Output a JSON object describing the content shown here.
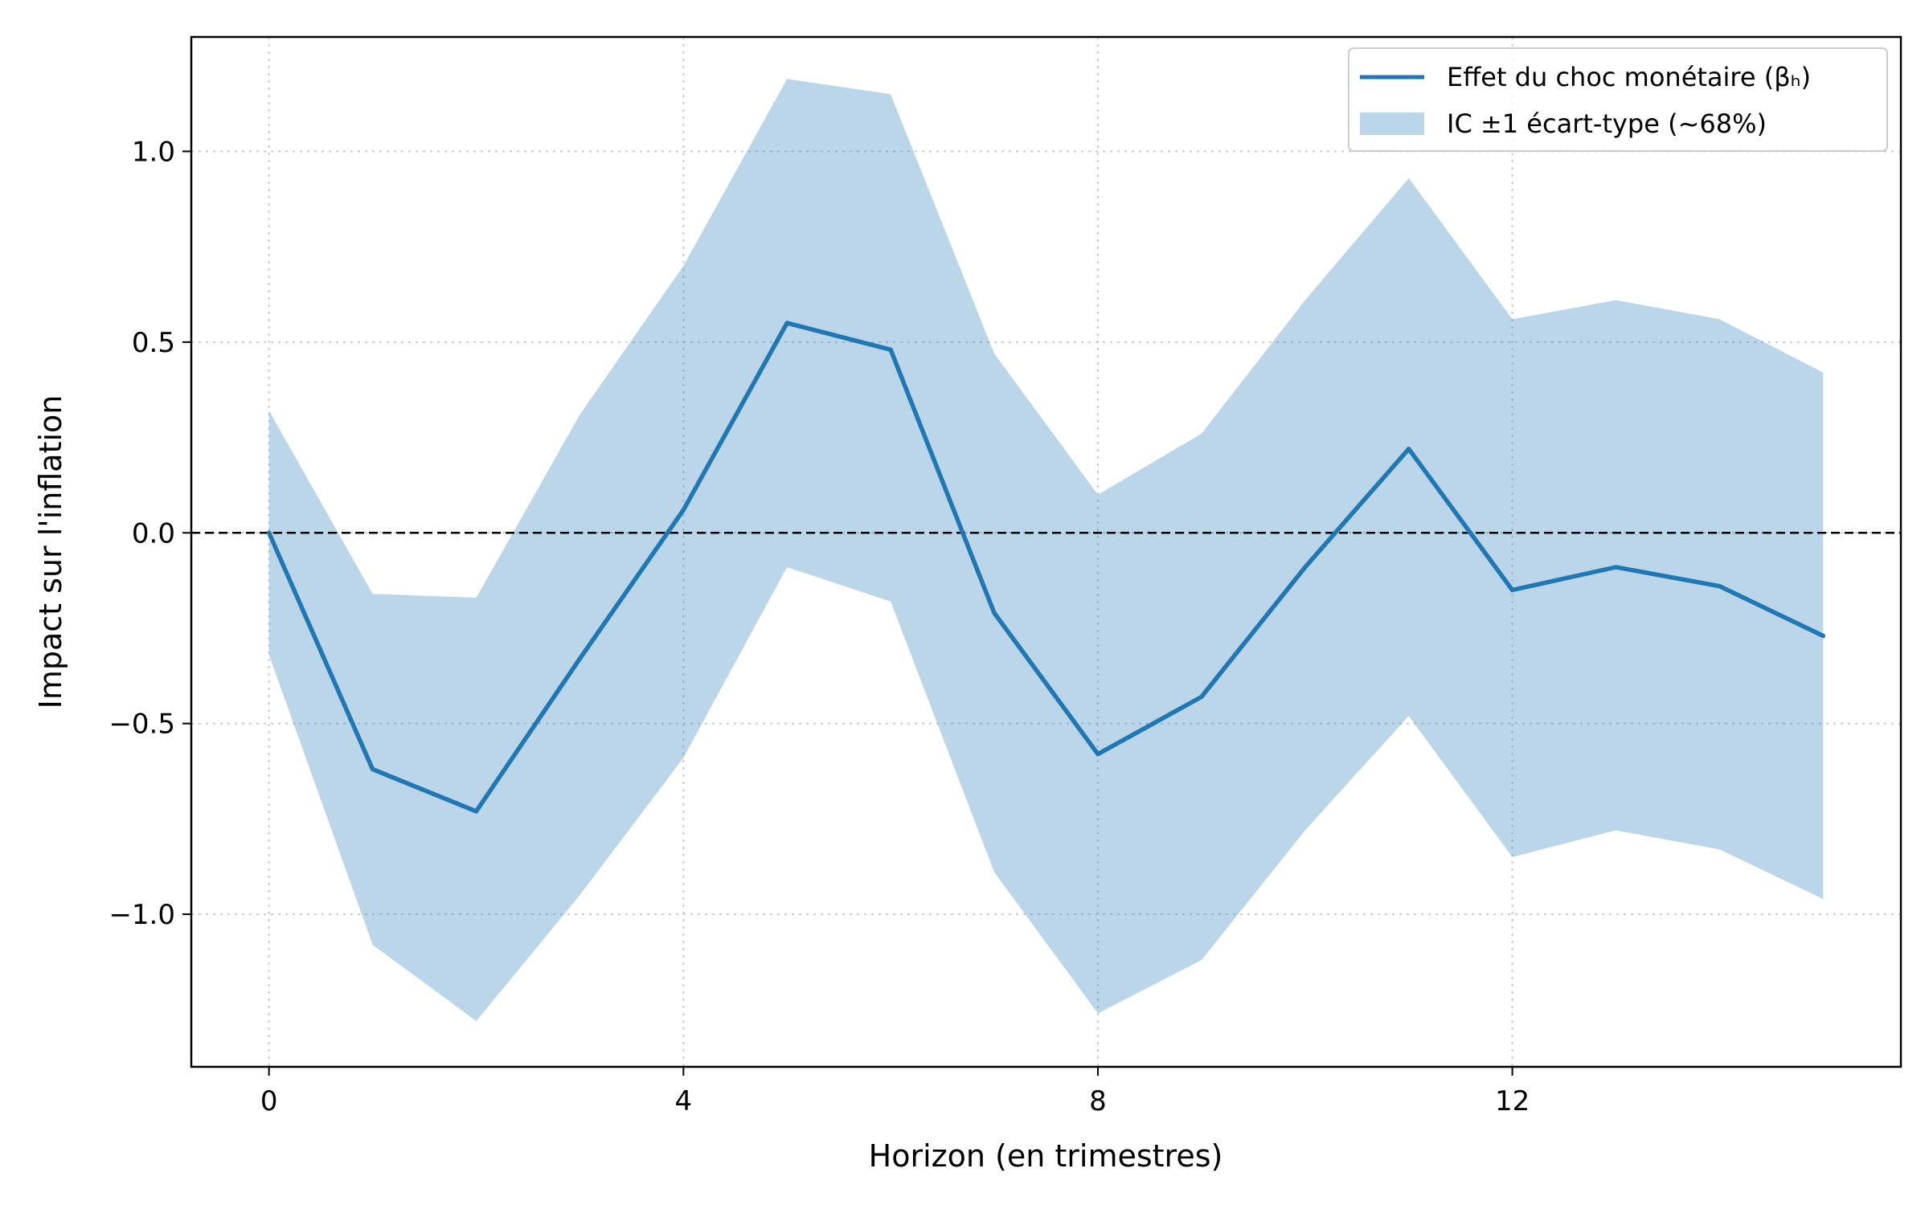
{
  "chart_data": {
    "type": "line",
    "xlabel": "Horizon (en trimestres)",
    "ylabel": "Impact sur l'inflation",
    "xlim": [
      -0.75,
      15.75
    ],
    "ylim": [
      -1.4,
      1.3
    ],
    "xticks": [
      0,
      4,
      8,
      12
    ],
    "xtick_labels": [
      "0",
      "4",
      "8",
      "12"
    ],
    "yticks": [
      -1.0,
      -0.5,
      0.0,
      0.5,
      1.0
    ],
    "ytick_labels": [
      "−1.0",
      "−0.5",
      "0.0",
      "0.5",
      "1.0"
    ],
    "grid": true,
    "legend_position": "top-right",
    "reference_line": {
      "y": 0.0,
      "style": "dashed",
      "color": "#000000"
    },
    "x": [
      0,
      1,
      2,
      3,
      4,
      5,
      6,
      7,
      8,
      9,
      10,
      11,
      12,
      13,
      14,
      15
    ],
    "series": [
      {
        "name": "Effet du choc monétaire (βₕ)",
        "kind": "line",
        "color": "#1f77b4",
        "values": [
          0.0,
          -0.62,
          -0.73,
          -0.33,
          0.06,
          0.55,
          0.48,
          -0.21,
          -0.58,
          -0.43,
          -0.09,
          0.22,
          -0.15,
          -0.09,
          -0.14,
          -0.27
        ]
      },
      {
        "name": "IC ±1 écart-type (~68%)",
        "kind": "band",
        "color": "#1f77b4",
        "opacity": 0.3,
        "lower": [
          -0.32,
          -1.08,
          -1.28,
          -0.95,
          -0.59,
          -0.09,
          -0.18,
          -0.89,
          -1.26,
          -1.12,
          -0.78,
          -0.48,
          -0.85,
          -0.78,
          -0.83,
          -0.96
        ],
        "upper": [
          0.32,
          -0.16,
          -0.17,
          0.31,
          0.7,
          1.19,
          1.15,
          0.47,
          0.1,
          0.26,
          0.61,
          0.93,
          0.56,
          0.61,
          0.56,
          0.42
        ]
      }
    ]
  }
}
